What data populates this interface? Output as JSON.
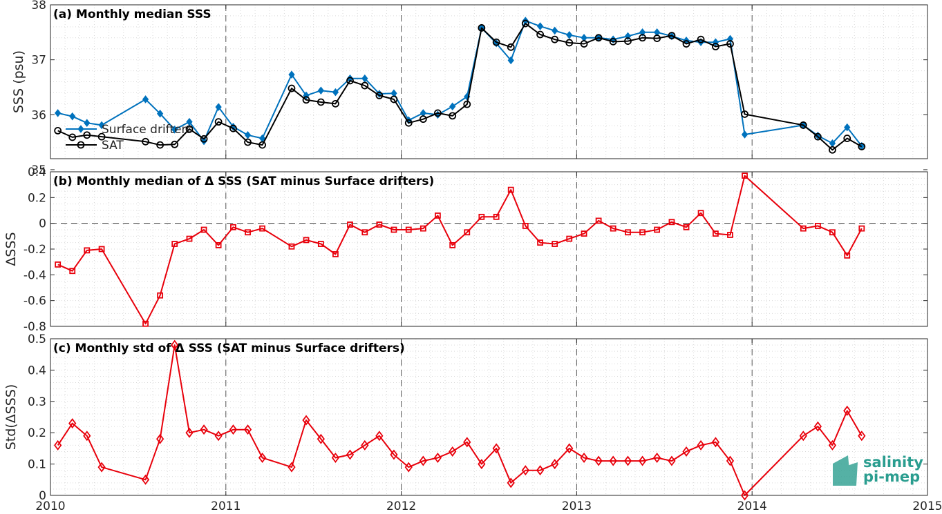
{
  "logo": {
    "line1": "salinity",
    "line2": "pi-mep"
  },
  "colors": {
    "drifters": "#0072BD",
    "sat": "#000000",
    "delta": "#E8000B",
    "grid": "#d9d9d9",
    "axis": "#262626"
  },
  "chart_data": [
    {
      "id": "a",
      "type": "line",
      "title": "(a) Monthly median SSS",
      "xlabel": "",
      "ylabel": "SSS (psu)",
      "xlim": [
        2010,
        2015
      ],
      "ylim": [
        35.2,
        38
      ],
      "xticks": [
        "2010",
        "2011",
        "2012",
        "2013",
        "2014",
        "2015"
      ],
      "yticks": [
        "35",
        "36",
        "37",
        "38"
      ],
      "grid": true,
      "legend": {
        "position": "lower-left",
        "entries": [
          "Surface drifters",
          "SAT"
        ]
      },
      "x": [
        2010.042,
        2010.125,
        2010.208,
        2010.292,
        2010.542,
        2010.625,
        2010.708,
        2010.792,
        2010.875,
        2010.958,
        2011.042,
        2011.125,
        2011.208,
        2011.375,
        2011.458,
        2011.542,
        2011.625,
        2011.708,
        2011.792,
        2011.875,
        2011.958,
        2012.042,
        2012.125,
        2012.208,
        2012.292,
        2012.375,
        2012.458,
        2012.542,
        2012.625,
        2012.708,
        2012.792,
        2012.875,
        2012.958,
        2013.042,
        2013.125,
        2013.208,
        2013.292,
        2013.375,
        2013.458,
        2013.542,
        2013.625,
        2013.708,
        2013.792,
        2013.875,
        2013.958,
        2014.292,
        2014.375,
        2014.458,
        2014.542,
        2014.625
      ],
      "series": [
        {
          "name": "Surface drifters",
          "marker": "diamond-filled",
          "values": [
            36.03,
            35.97,
            35.85,
            35.81,
            36.28,
            36.02,
            35.73,
            35.87,
            35.52,
            36.14,
            35.78,
            35.63,
            35.57,
            36.73,
            36.35,
            36.44,
            36.41,
            36.66,
            36.66,
            36.38,
            36.39,
            35.9,
            36.03,
            36.0,
            36.15,
            36.33,
            37.58,
            37.3,
            36.99,
            37.71,
            37.61,
            37.53,
            37.45,
            37.4,
            37.4,
            37.37,
            37.43,
            37.5,
            37.5,
            37.43,
            37.35,
            37.32,
            37.32,
            37.38,
            35.64,
            35.81,
            35.62,
            35.48,
            35.77,
            35.43
          ]
        },
        {
          "name": "SAT",
          "marker": "circle-open",
          "values": [
            35.71,
            35.59,
            35.63,
            35.6,
            35.51,
            35.45,
            35.46,
            35.74,
            35.56,
            35.87,
            35.75,
            35.5,
            35.45,
            36.48,
            36.27,
            36.23,
            36.2,
            36.62,
            36.53,
            36.35,
            36.28,
            35.85,
            35.92,
            36.03,
            35.98,
            36.19,
            37.58,
            37.32,
            37.23,
            37.66,
            37.46,
            37.37,
            37.31,
            37.29,
            37.4,
            37.33,
            37.34,
            37.4,
            37.39,
            37.44,
            37.29,
            37.37,
            37.24,
            37.29,
            36.01,
            35.81,
            35.6,
            35.36,
            35.57,
            35.42
          ]
        }
      ]
    },
    {
      "id": "b",
      "type": "line",
      "title": "(b) Monthly median of Δ SSS (SAT minus Surface drifters)",
      "xlabel": "",
      "ylabel": "ΔSSS",
      "xlim": [
        2010,
        2015
      ],
      "ylim": [
        -0.8,
        0.4
      ],
      "xticks": [
        "2010",
        "2011",
        "2012",
        "2013",
        "2014",
        "2015"
      ],
      "yticks": [
        "-0.8",
        "-0.6",
        "-0.4",
        "-0.2",
        "0",
        "0.2",
        "0.4"
      ],
      "grid": true,
      "reference_line": 0,
      "x": [
        2010.042,
        2010.125,
        2010.208,
        2010.292,
        2010.542,
        2010.625,
        2010.708,
        2010.792,
        2010.875,
        2010.958,
        2011.042,
        2011.125,
        2011.208,
        2011.375,
        2011.458,
        2011.542,
        2011.625,
        2011.708,
        2011.792,
        2011.875,
        2011.958,
        2012.042,
        2012.125,
        2012.208,
        2012.292,
        2012.375,
        2012.458,
        2012.542,
        2012.625,
        2012.708,
        2012.792,
        2012.875,
        2012.958,
        2013.042,
        2013.125,
        2013.208,
        2013.292,
        2013.375,
        2013.458,
        2013.542,
        2013.625,
        2013.708,
        2013.792,
        2013.875,
        2013.958,
        2014.292,
        2014.375,
        2014.458,
        2014.542,
        2014.625
      ],
      "series": [
        {
          "marker": "square",
          "values": [
            -0.32,
            -0.37,
            -0.21,
            -0.2,
            -0.78,
            -0.56,
            -0.16,
            -0.12,
            -0.05,
            -0.17,
            -0.03,
            -0.07,
            -0.04,
            -0.18,
            -0.13,
            -0.16,
            -0.24,
            -0.01,
            -0.07,
            -0.01,
            -0.05,
            -0.05,
            -0.04,
            0.06,
            -0.17,
            -0.07,
            0.05,
            0.05,
            0.26,
            -0.02,
            -0.15,
            -0.16,
            -0.12,
            -0.08,
            0.02,
            -0.04,
            -0.07,
            -0.07,
            -0.05,
            0.01,
            -0.03,
            0.08,
            -0.08,
            -0.09,
            0.37,
            -0.04,
            -0.02,
            -0.07,
            -0.25,
            -0.04
          ]
        }
      ]
    },
    {
      "id": "c",
      "type": "line",
      "title": "(c) Monthly std of Δ SSS (SAT minus Surface drifters)",
      "xlabel": "",
      "ylabel": "Std(ΔSSS)",
      "xlim": [
        2010,
        2015
      ],
      "ylim": [
        0,
        0.5
      ],
      "xticks": [
        "2010",
        "2011",
        "2012",
        "2013",
        "2014",
        "2015"
      ],
      "yticks": [
        "0",
        "0.1",
        "0.2",
        "0.3",
        "0.4",
        "0.5"
      ],
      "grid": true,
      "x": [
        2010.042,
        2010.125,
        2010.208,
        2010.292,
        2010.542,
        2010.625,
        2010.708,
        2010.792,
        2010.875,
        2010.958,
        2011.042,
        2011.125,
        2011.208,
        2011.375,
        2011.458,
        2011.542,
        2011.625,
        2011.708,
        2011.792,
        2011.875,
        2011.958,
        2012.042,
        2012.125,
        2012.208,
        2012.292,
        2012.375,
        2012.458,
        2012.542,
        2012.625,
        2012.708,
        2012.792,
        2012.875,
        2012.958,
        2013.042,
        2013.125,
        2013.208,
        2013.292,
        2013.375,
        2013.458,
        2013.542,
        2013.625,
        2013.708,
        2013.792,
        2013.875,
        2013.958,
        2014.292,
        2014.375,
        2014.458,
        2014.542,
        2014.625
      ],
      "series": [
        {
          "marker": "diamond-open",
          "values": [
            0.16,
            0.23,
            0.19,
            0.09,
            0.05,
            0.18,
            0.48,
            0.2,
            0.21,
            0.19,
            0.21,
            0.21,
            0.12,
            0.09,
            0.24,
            0.18,
            0.12,
            0.13,
            0.16,
            0.19,
            0.13,
            0.09,
            0.11,
            0.12,
            0.14,
            0.17,
            0.1,
            0.15,
            0.04,
            0.08,
            0.08,
            0.1,
            0.15,
            0.12,
            0.11,
            0.11,
            0.11,
            0.11,
            0.12,
            0.11,
            0.14,
            0.16,
            0.17,
            0.11,
            0.0,
            0.19,
            0.22,
            0.16,
            0.27,
            0.19
          ]
        }
      ]
    }
  ]
}
